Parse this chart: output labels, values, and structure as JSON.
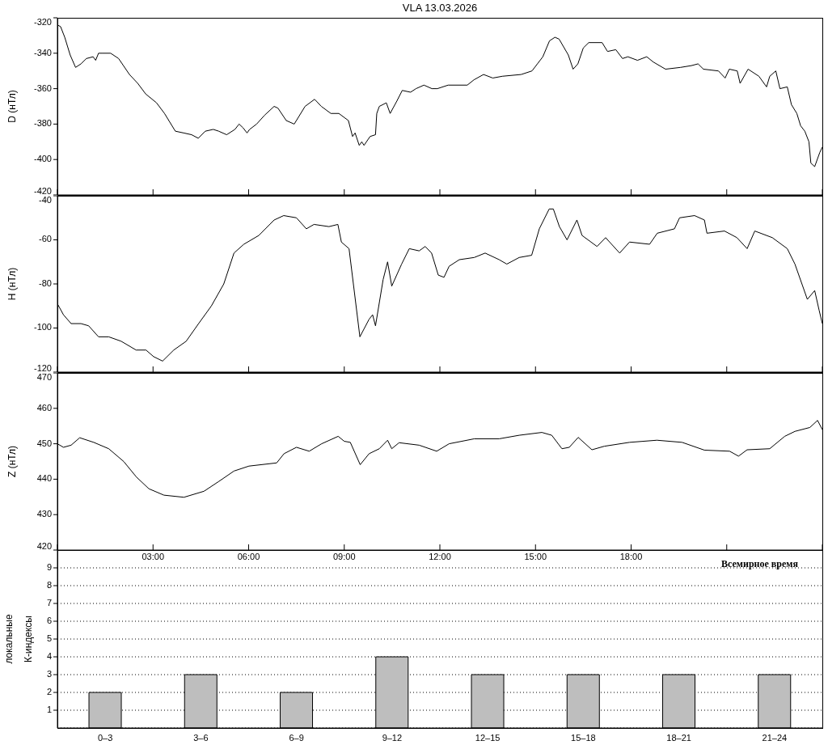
{
  "chart_data": [
    {
      "type": "line",
      "title": "VLA   13.03.2026",
      "ylabel": "D (нТл)",
      "xlim": [
        0,
        24
      ],
      "ylim": [
        -420,
        -320
      ],
      "yticks": [
        -420,
        -400,
        -380,
        -360,
        -340,
        -320
      ],
      "xticks": [
        0,
        3,
        6,
        9,
        12,
        15,
        18,
        21,
        24
      ],
      "tick_labels": "y",
      "grid": false,
      "x": [
        0,
        0.1,
        0.23,
        0.4,
        0.57,
        0.74,
        0.91,
        1.12,
        1.2,
        1.29,
        1.42,
        1.67,
        1.92,
        2.26,
        2.52,
        2.77,
        3.11,
        3.36,
        3.7,
        3.96,
        4.21,
        4.42,
        4.64,
        4.89,
        5.06,
        5.31,
        5.57,
        5.7,
        5.82,
        5.95,
        6.03,
        6.25,
        6.5,
        6.8,
        6.92,
        7.18,
        7.43,
        7.77,
        8.07,
        8.28,
        8.58,
        8.83,
        9.13,
        9.26,
        9.34,
        9.47,
        9.55,
        9.62,
        9.81,
        9.98,
        10.02,
        10.1,
        10.32,
        10.44,
        10.65,
        10.82,
        11.08,
        11.25,
        11.5,
        11.75,
        11.92,
        12.26,
        12.86,
        13.07,
        13.37,
        13.66,
        13.96,
        14.55,
        14.89,
        15.06,
        15.23,
        15.44,
        15.61,
        15.74,
        16.03,
        16.18,
        16.33,
        16.5,
        16.67,
        17.09,
        17.26,
        17.52,
        17.73,
        17.9,
        18.2,
        18.49,
        18.7,
        19.08,
        19.55,
        19.89,
        20.1,
        20.27,
        20.74,
        20.95,
        21.08,
        21.33,
        21.42,
        21.67,
        22.01,
        22.25,
        22.35,
        22.54,
        22.67,
        22.9,
        23.03,
        23.2,
        23.32,
        23.45,
        23.58,
        23.64,
        23.76,
        23.92,
        24
      ],
      "series": [
        {
          "color": "#000000",
          "values": [
            -324,
            -325,
            -331,
            -341,
            -348,
            -346,
            -343,
            -342,
            -344,
            -340,
            -340,
            -340,
            -343,
            -352,
            -357,
            -363,
            -368,
            -374,
            -384,
            -385,
            -386,
            -388,
            -384,
            -383,
            -384,
            -386,
            -383,
            -380,
            -382,
            -385,
            -383,
            -380,
            -375,
            -370,
            -371,
            -378,
            -380,
            -370,
            -366,
            -370,
            -374,
            -374,
            -378,
            -387,
            -385,
            -392,
            -390,
            -392,
            -387,
            -386,
            -374,
            -370,
            -368,
            -374,
            -367,
            -361,
            -362,
            -360,
            -358,
            -360,
            -360,
            -358,
            -358,
            -355,
            -352,
            -354,
            -353,
            -352,
            -350,
            -346,
            -342,
            -333,
            -331,
            -332,
            -341,
            -349,
            -346,
            -337,
            -334,
            -334,
            -339,
            -338,
            -343,
            -342,
            -344,
            -342,
            -345,
            -349,
            -348,
            -347,
            -346,
            -349,
            -350,
            -354,
            -349,
            -350,
            -357,
            -349,
            -353,
            -359,
            -353,
            -350,
            -360,
            -359,
            -369,
            -374,
            -381,
            -384,
            -390,
            -402,
            -404,
            -396,
            -393
          ]
        }
      ]
    },
    {
      "type": "line",
      "ylabel": "H (нТл)",
      "xlim": [
        0,
        24
      ],
      "ylim": [
        -120,
        -40
      ],
      "yticks": [
        -120,
        -100,
        -80,
        -60,
        -40
      ],
      "xticks": [
        0,
        3,
        6,
        9,
        12,
        15,
        18,
        21,
        24
      ],
      "tick_labels": "y",
      "grid": false,
      "x": [
        0,
        0.19,
        0.43,
        0.74,
        0.98,
        1.29,
        1.61,
        2.0,
        2.47,
        2.78,
        3.02,
        3.3,
        3.65,
        4.04,
        4.43,
        4.83,
        5.22,
        5.54,
        5.85,
        6.32,
        6.8,
        7.1,
        7.5,
        7.81,
        8.05,
        8.52,
        8.8,
        8.91,
        9.15,
        9.49,
        9.78,
        9.89,
        9.98,
        10.22,
        10.36,
        10.49,
        10.8,
        11.04,
        11.35,
        11.54,
        11.74,
        11.95,
        12.13,
        12.29,
        12.61,
        13.08,
        13.42,
        13.86,
        14.1,
        14.49,
        14.88,
        15.12,
        15.43,
        15.56,
        15.75,
        15.99,
        16.3,
        16.46,
        16.93,
        17.2,
        17.64,
        17.95,
        18.58,
        18.82,
        19.36,
        19.52,
        19.99,
        20.3,
        20.38,
        20.93,
        21.32,
        21.64,
        21.88,
        22.43,
        22.9,
        23.14,
        23.53,
        23.76,
        23.9,
        24
      ],
      "series": [
        {
          "color": "#000000",
          "values": [
            -89,
            -94,
            -98,
            -98,
            -99,
            -104,
            -104,
            -106,
            -110,
            -110,
            -113,
            -115,
            -110,
            -106,
            -98,
            -90,
            -80,
            -66,
            -62,
            -58,
            -51,
            -49,
            -50,
            -55,
            -53,
            -54,
            -53,
            -61,
            -64,
            -104,
            -96,
            -94,
            -99,
            -78,
            -70,
            -81,
            -71,
            -64,
            -65,
            -63,
            -66,
            -76,
            -77,
            -72,
            -69,
            -68,
            -66,
            -69,
            -71,
            -68,
            -67,
            -55,
            -46,
            -46,
            -54,
            -60,
            -51,
            -58,
            -63,
            -59,
            -66,
            -61,
            -62,
            -57,
            -55,
            -50,
            -49,
            -51,
            -57,
            -56,
            -59,
            -64,
            -56,
            -59,
            -64,
            -71,
            -87,
            -83,
            -92,
            -98
          ]
        }
      ]
    },
    {
      "type": "line",
      "ylabel": "Z (нТл)",
      "xlabel": "Всемирное время",
      "xlim": [
        0,
        24
      ],
      "ylim": [
        420,
        470
      ],
      "yticks": [
        420,
        430,
        440,
        450,
        460,
        470
      ],
      "xticks": [
        {
          "value": 0,
          "label": null
        },
        {
          "value": 3,
          "label": "03:00"
        },
        {
          "value": 6,
          "label": "06:00"
        },
        {
          "value": 9,
          "label": "09:00"
        },
        {
          "value": 12,
          "label": "12:00"
        },
        {
          "value": 15,
          "label": "15:00"
        },
        {
          "value": 18,
          "label": "18:00"
        },
        {
          "value": 21,
          "label": null
        },
        {
          "value": 24,
          "label": null
        }
      ],
      "grid": false,
      "x": [
        0,
        0.19,
        0.43,
        0.7,
        1.14,
        1.61,
        2.08,
        2.48,
        2.87,
        3.34,
        3.97,
        4.6,
        5.07,
        5.54,
        6.01,
        6.88,
        7.11,
        7.5,
        7.9,
        8.29,
        8.81,
        9.0,
        9.19,
        9.5,
        9.78,
        10.1,
        10.36,
        10.49,
        10.72,
        11.35,
        11.9,
        12.29,
        13.08,
        13.86,
        14.49,
        15.2,
        15.51,
        15.83,
        16.06,
        16.34,
        16.77,
        17.16,
        17.95,
        18.81,
        19.6,
        20.3,
        21.09,
        21.37,
        21.64,
        22.35,
        22.82,
        23.14,
        23.61,
        23.85,
        24
      ],
      "series": [
        {
          "color": "#000000",
          "values": [
            450,
            449,
            449.6,
            451.7,
            450.4,
            448.6,
            445,
            440.6,
            437.3,
            435.5,
            434.9,
            436.6,
            439.4,
            442.3,
            443.7,
            444.6,
            447.2,
            449,
            447.9,
            450,
            452.1,
            450.7,
            450.4,
            444.1,
            447.2,
            448.6,
            451,
            448.6,
            450.3,
            449.6,
            447.9,
            450,
            451.4,
            451.4,
            452.4,
            453.2,
            452.4,
            448.6,
            449,
            451.8,
            448.3,
            449.3,
            450.4,
            451,
            450.4,
            448.2,
            447.9,
            446.5,
            448.3,
            448.6,
            452.1,
            453.5,
            454.6,
            456.6,
            454
          ]
        }
      ]
    },
    {
      "type": "bar",
      "ylabel": "локальные\nК-индексы",
      "categories": [
        "0–3",
        "3–6",
        "6–9",
        "9–12",
        "12–15",
        "15–18",
        "18–21",
        "21–24"
      ],
      "ylim": [
        0,
        10
      ],
      "yticks": [
        1,
        2,
        3,
        4,
        5,
        6,
        7,
        8,
        9
      ],
      "grid": "y",
      "series": [
        {
          "color": "#bebebe",
          "values": [
            2,
            3,
            2,
            4,
            3,
            3,
            3,
            3
          ]
        }
      ]
    }
  ]
}
